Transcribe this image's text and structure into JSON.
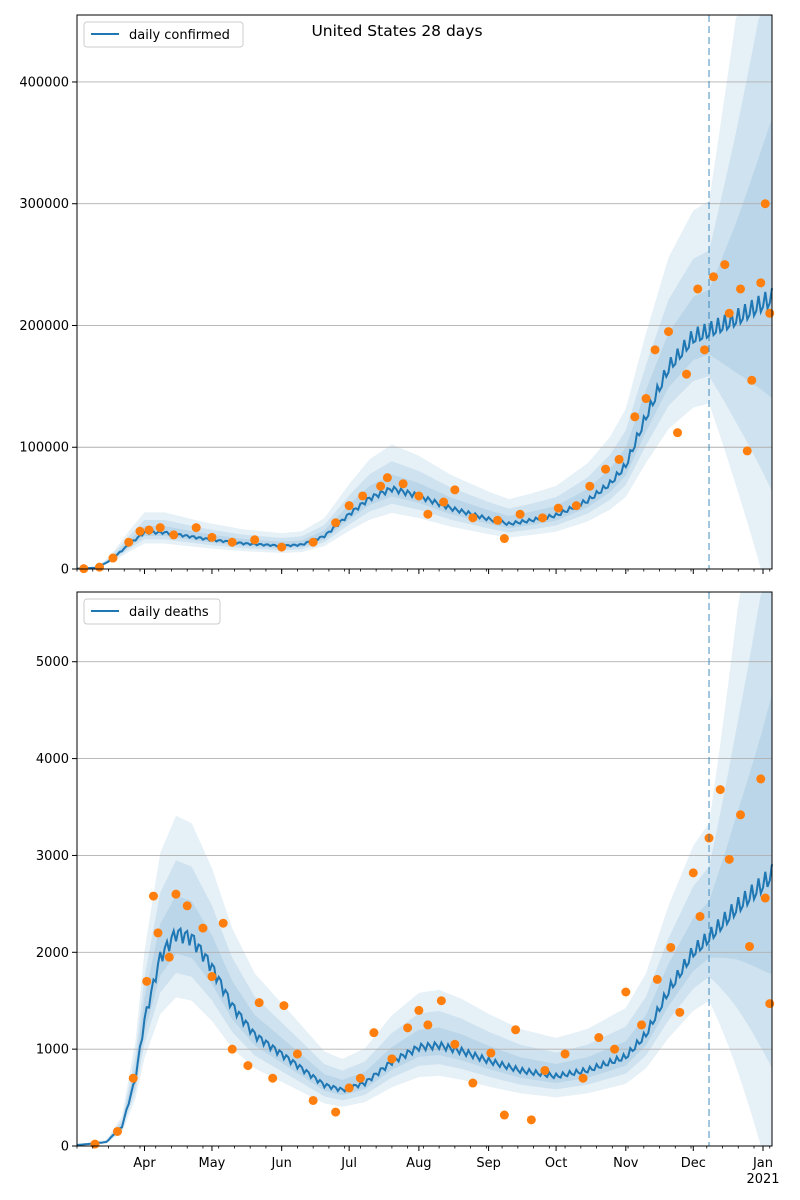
{
  "title": "United States 28 days",
  "colors": {
    "model_line": "#1f77b4",
    "observed_points": "#ff7f0e",
    "band_fill": "#1f77b4",
    "gridline": "#b0b0b0",
    "forecast_marker": "#1f77b4"
  },
  "chart_data": [
    {
      "type": "line",
      "legend": "daily confirmed",
      "legend_position": "top-left",
      "x_range": [
        "2020-03-02",
        "2021-01-05"
      ],
      "ylim": [
        0,
        455000
      ],
      "yticks": [
        0,
        100000,
        200000,
        300000,
        400000
      ],
      "ytick_labels": [
        "0",
        "100000",
        "200000",
        "300000",
        "400000"
      ],
      "grid": "y",
      "forecast_start": "2020-12-08",
      "model_curve": [
        [
          "2020-03-02",
          300
        ],
        [
          "2020-03-10",
          1000
        ],
        [
          "2020-03-15",
          5000
        ],
        [
          "2020-03-20",
          12000
        ],
        [
          "2020-03-25",
          20000
        ],
        [
          "2020-04-01",
          30000
        ],
        [
          "2020-04-10",
          30000
        ],
        [
          "2020-04-20",
          27000
        ],
        [
          "2020-05-01",
          24000
        ],
        [
          "2020-05-15",
          21000
        ],
        [
          "2020-06-01",
          19000
        ],
        [
          "2020-06-10",
          20000
        ],
        [
          "2020-06-20",
          27000
        ],
        [
          "2020-07-01",
          45000
        ],
        [
          "2020-07-10",
          58000
        ],
        [
          "2020-07-20",
          66000
        ],
        [
          "2020-08-01",
          60000
        ],
        [
          "2020-08-15",
          50000
        ],
        [
          "2020-09-01",
          41000
        ],
        [
          "2020-09-10",
          37000
        ],
        [
          "2020-09-20",
          40000
        ],
        [
          "2020-10-01",
          44000
        ],
        [
          "2020-10-15",
          56000
        ],
        [
          "2020-10-25",
          70000
        ],
        [
          "2020-11-01",
          85000
        ],
        [
          "2020-11-10",
          125000
        ],
        [
          "2020-11-20",
          165000
        ],
        [
          "2020-12-01",
          190000
        ],
        [
          "2020-12-08",
          195000
        ],
        [
          "2020-12-20",
          205000
        ],
        [
          "2021-01-01",
          218000
        ],
        [
          "2021-01-05",
          222000
        ]
      ],
      "observed": [
        [
          "2020-03-05",
          300
        ],
        [
          "2020-03-12",
          1500
        ],
        [
          "2020-03-18",
          9000
        ],
        [
          "2020-03-25",
          22000
        ],
        [
          "2020-03-30",
          31000
        ],
        [
          "2020-04-03",
          32000
        ],
        [
          "2020-04-08",
          34000
        ],
        [
          "2020-04-14",
          28000
        ],
        [
          "2020-04-24",
          34000
        ],
        [
          "2020-05-01",
          26000
        ],
        [
          "2020-05-10",
          22000
        ],
        [
          "2020-05-20",
          24000
        ],
        [
          "2020-06-01",
          18000
        ],
        [
          "2020-06-15",
          22000
        ],
        [
          "2020-06-25",
          38000
        ],
        [
          "2020-07-01",
          52000
        ],
        [
          "2020-07-07",
          60000
        ],
        [
          "2020-07-15",
          68000
        ],
        [
          "2020-07-18",
          75000
        ],
        [
          "2020-07-25",
          70000
        ],
        [
          "2020-08-01",
          60000
        ],
        [
          "2020-08-05",
          45000
        ],
        [
          "2020-08-12",
          55000
        ],
        [
          "2020-08-17",
          65000
        ],
        [
          "2020-08-25",
          42000
        ],
        [
          "2020-09-05",
          40000
        ],
        [
          "2020-09-08",
          25000
        ],
        [
          "2020-09-15",
          45000
        ],
        [
          "2020-09-25",
          42000
        ],
        [
          "2020-10-02",
          50000
        ],
        [
          "2020-10-10",
          52000
        ],
        [
          "2020-10-16",
          68000
        ],
        [
          "2020-10-23",
          82000
        ],
        [
          "2020-10-29",
          90000
        ],
        [
          "2020-11-05",
          125000
        ],
        [
          "2020-11-10",
          140000
        ],
        [
          "2020-11-14",
          180000
        ],
        [
          "2020-11-20",
          195000
        ],
        [
          "2020-11-24",
          112000
        ],
        [
          "2020-11-28",
          160000
        ],
        [
          "2020-12-03",
          230000
        ],
        [
          "2020-12-06",
          180000
        ],
        [
          "2020-12-10",
          240000
        ],
        [
          "2020-12-15",
          250000
        ],
        [
          "2020-12-17",
          210000
        ],
        [
          "2020-12-22",
          230000
        ],
        [
          "2020-12-25",
          97000
        ],
        [
          "2020-12-27",
          155000
        ],
        [
          "2020-12-31",
          235000
        ],
        [
          "2021-01-02",
          300000
        ],
        [
          "2021-01-04",
          210000
        ]
      ]
    },
    {
      "type": "line",
      "legend": "daily deaths",
      "legend_position": "top-left",
      "x_range": [
        "2020-03-02",
        "2021-01-05"
      ],
      "ylim": [
        0,
        5720
      ],
      "yticks": [
        0,
        1000,
        2000,
        3000,
        4000,
        5000
      ],
      "ytick_labels": [
        "0",
        "1000",
        "2000",
        "3000",
        "4000",
        "5000"
      ],
      "xticks": [
        "2020-04-01",
        "2020-05-01",
        "2020-06-01",
        "2020-07-01",
        "2020-08-01",
        "2020-09-01",
        "2020-10-01",
        "2020-11-01",
        "2020-12-01",
        "2021-01-01"
      ],
      "xtick_labels": [
        "Apr",
        "May",
        "Jun",
        "Jul",
        "Aug",
        "Sep",
        "Oct",
        "Nov",
        "Dec",
        "Jan"
      ],
      "xtick_year_label": "2021",
      "grid": "y",
      "forecast_start": "2020-12-08",
      "model_curve": [
        [
          "2020-03-02",
          10
        ],
        [
          "2020-03-15",
          40
        ],
        [
          "2020-03-22",
          200
        ],
        [
          "2020-03-28",
          700
        ],
        [
          "2020-04-01",
          1300
        ],
        [
          "2020-04-08",
          1950
        ],
        [
          "2020-04-15",
          2200
        ],
        [
          "2020-04-22",
          2150
        ],
        [
          "2020-05-01",
          1850
        ],
        [
          "2020-05-10",
          1450
        ],
        [
          "2020-05-20",
          1150
        ],
        [
          "2020-06-01",
          950
        ],
        [
          "2020-06-10",
          800
        ],
        [
          "2020-06-20",
          630
        ],
        [
          "2020-06-28",
          580
        ],
        [
          "2020-07-08",
          650
        ],
        [
          "2020-07-20",
          870
        ],
        [
          "2020-08-01",
          1020
        ],
        [
          "2020-08-10",
          1040
        ],
        [
          "2020-08-20",
          980
        ],
        [
          "2020-09-01",
          880
        ],
        [
          "2020-09-15",
          780
        ],
        [
          "2020-10-01",
          720
        ],
        [
          "2020-10-15",
          780
        ],
        [
          "2020-11-01",
          920
        ],
        [
          "2020-11-10",
          1150
        ],
        [
          "2020-11-20",
          1600
        ],
        [
          "2020-12-01",
          2000
        ],
        [
          "2020-12-08",
          2150
        ],
        [
          "2020-12-20",
          2450
        ],
        [
          "2021-01-01",
          2700
        ],
        [
          "2021-01-05",
          2800
        ]
      ],
      "observed": [
        [
          "2020-03-10",
          20
        ],
        [
          "2020-03-20",
          150
        ],
        [
          "2020-03-27",
          700
        ],
        [
          "2020-04-02",
          1700
        ],
        [
          "2020-04-05",
          2580
        ],
        [
          "2020-04-07",
          2200
        ],
        [
          "2020-04-12",
          1950
        ],
        [
          "2020-04-15",
          2600
        ],
        [
          "2020-04-20",
          2480
        ],
        [
          "2020-04-27",
          2250
        ],
        [
          "2020-05-01",
          1750
        ],
        [
          "2020-05-06",
          2300
        ],
        [
          "2020-05-10",
          1000
        ],
        [
          "2020-05-17",
          830
        ],
        [
          "2020-05-22",
          1480
        ],
        [
          "2020-05-28",
          700
        ],
        [
          "2020-06-02",
          1450
        ],
        [
          "2020-06-08",
          950
        ],
        [
          "2020-06-15",
          470
        ],
        [
          "2020-06-25",
          350
        ],
        [
          "2020-07-01",
          600
        ],
        [
          "2020-07-06",
          700
        ],
        [
          "2020-07-12",
          1170
        ],
        [
          "2020-07-20",
          900
        ],
        [
          "2020-07-27",
          1220
        ],
        [
          "2020-08-01",
          1400
        ],
        [
          "2020-08-05",
          1250
        ],
        [
          "2020-08-11",
          1500
        ],
        [
          "2020-08-17",
          1050
        ],
        [
          "2020-08-25",
          650
        ],
        [
          "2020-09-02",
          960
        ],
        [
          "2020-09-08",
          320
        ],
        [
          "2020-09-13",
          1200
        ],
        [
          "2020-09-20",
          270
        ],
        [
          "2020-09-26",
          780
        ],
        [
          "2020-10-05",
          950
        ],
        [
          "2020-10-13",
          700
        ],
        [
          "2020-10-20",
          1120
        ],
        [
          "2020-10-27",
          1000
        ],
        [
          "2020-11-01",
          1590
        ],
        [
          "2020-11-08",
          1250
        ],
        [
          "2020-11-15",
          1720
        ],
        [
          "2020-11-21",
          2050
        ],
        [
          "2020-11-25",
          1380
        ],
        [
          "2020-12-01",
          2820
        ],
        [
          "2020-12-04",
          2370
        ],
        [
          "2020-12-08",
          3180
        ],
        [
          "2020-12-13",
          3680
        ],
        [
          "2020-12-17",
          2960
        ],
        [
          "2020-12-22",
          3420
        ],
        [
          "2020-12-26",
          2060
        ],
        [
          "2020-12-31",
          3790
        ],
        [
          "2021-01-02",
          2560
        ],
        [
          "2021-01-04",
          1470
        ]
      ]
    }
  ]
}
